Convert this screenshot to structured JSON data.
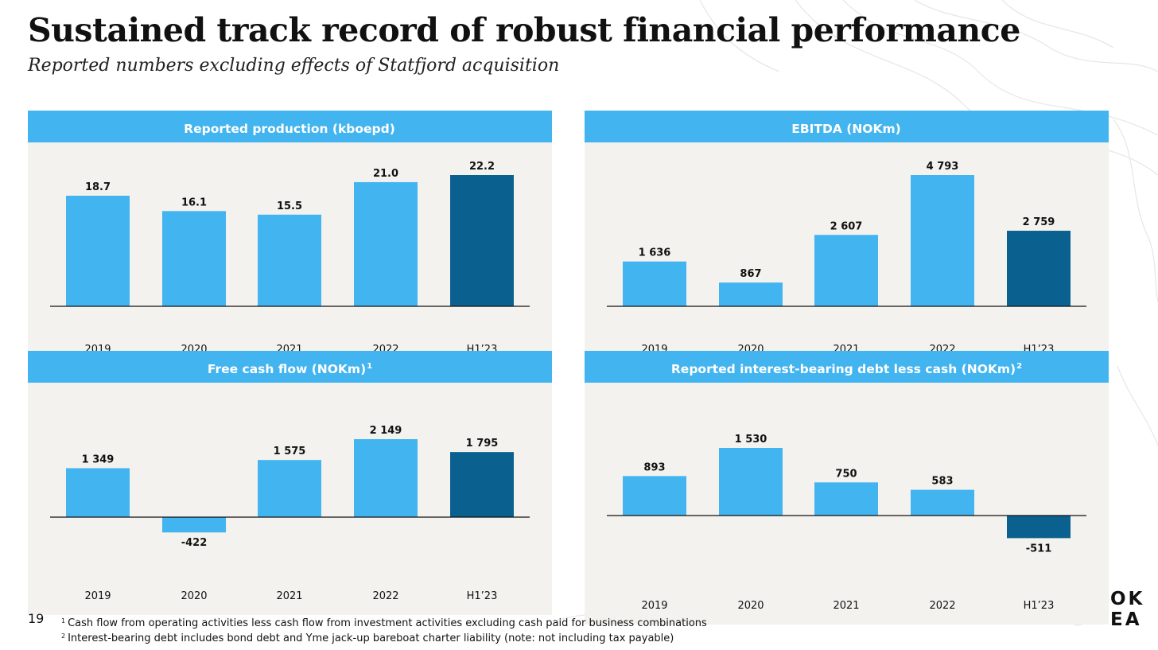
{
  "title": "Sustained track record of robust financial performance",
  "subtitle": "Reported numbers excluding effects of Statfjord acquisition",
  "page_number": "19",
  "footnotes": [
    {
      "mark": "1",
      "text": "Cash flow from operating activities less cash flow from investment activities excluding cash paid for business combinations"
    },
    {
      "mark": "2",
      "text": "Interest-bearing debt includes bond debt and Yme jack-up bareboat charter liability (note: not including tax payable)"
    }
  ],
  "logo": {
    "line1": "OK",
    "line2": "EA"
  },
  "colors": {
    "bar": "#42b4f0",
    "highlight": "#0a6190",
    "header": "#42b4f0",
    "panel_bg": "#f3f2ef"
  },
  "chart_data": [
    {
      "type": "bar",
      "title": "Reported production (kboepd)",
      "title_sup": "",
      "categories": [
        "2019",
        "2020",
        "2021",
        "2022",
        "H1’23"
      ],
      "values": [
        18.7,
        16.1,
        15.5,
        21.0,
        22.2
      ],
      "value_labels": [
        "18.7",
        "16.1",
        "15.5",
        "21.0",
        "22.2"
      ],
      "highlight_index": 4,
      "ylim": [
        0,
        22.2
      ]
    },
    {
      "type": "bar",
      "title": "EBITDA (NOKm)",
      "title_sup": "",
      "categories": [
        "2019",
        "2020",
        "2021",
        "2022",
        "H1’23"
      ],
      "values": [
        1636,
        867,
        2607,
        4793,
        2759
      ],
      "value_labels": [
        "1 636",
        "867",
        "2 607",
        "4 793",
        "2 759"
      ],
      "highlight_index": 4,
      "ylim": [
        0,
        4793
      ]
    },
    {
      "type": "bar",
      "title": "Free cash flow (NOKm)",
      "title_sup": "1",
      "categories": [
        "2019",
        "2020",
        "2021",
        "2022",
        "H1’23"
      ],
      "values": [
        1349,
        -422,
        1575,
        2149,
        1795
      ],
      "value_labels": [
        "1 349",
        "-422",
        "1 575",
        "2 149",
        "1 795"
      ],
      "highlight_index": 4,
      "ylim": [
        -422,
        2149
      ]
    },
    {
      "type": "bar",
      "title": "Reported interest-bearing debt less cash (NOKm)",
      "title_sup": "2",
      "categories": [
        "2019",
        "2020",
        "2021",
        "2022",
        "H1’23"
      ],
      "values": [
        893,
        1530,
        750,
        583,
        -511
      ],
      "value_labels": [
        "893",
        "1 530",
        "750",
        "583",
        "-511"
      ],
      "highlight_index": 4,
      "ylim": [
        -511,
        1530
      ]
    }
  ]
}
